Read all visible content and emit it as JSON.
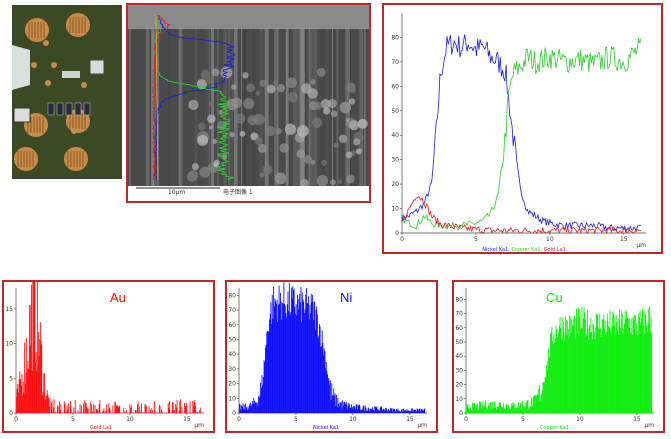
{
  "sem": {
    "scale_label": "10µm",
    "caption": "电子图像 1"
  },
  "photo": {
    "pad_color": "#c98b48",
    "board_color": "#3b4a24"
  },
  "chart_data": [
    {
      "id": "linescan",
      "type": "line",
      "x_unit": "µm",
      "xlim": [
        0,
        16.5
      ],
      "ylim": [
        0,
        90
      ],
      "x_ticks": [
        0,
        5,
        10,
        15
      ],
      "y_ticks": [
        0,
        10,
        20,
        30,
        40,
        50,
        60,
        70,
        80
      ],
      "series": [
        {
          "name": "Nickel Ka1",
          "color": "#1f1fd6",
          "x": [
            0,
            0.5,
            1,
            1.5,
            2,
            2.3,
            2.6,
            3,
            3.5,
            4,
            4.5,
            5,
            5.5,
            6,
            6.5,
            7,
            7.5,
            8,
            8.5,
            9,
            9.5,
            10,
            11,
            12,
            13,
            14,
            15,
            16
          ],
          "y": [
            6,
            7,
            9,
            12,
            20,
            40,
            65,
            76,
            78,
            76,
            78,
            75,
            76,
            72,
            70,
            66,
            40,
            18,
            9,
            7,
            5,
            4,
            3,
            3,
            3,
            2,
            2,
            2
          ]
        },
        {
          "name": "Copper Ka1",
          "color": "#2ecc2e",
          "x": [
            0,
            0.5,
            1,
            1.5,
            2,
            2.5,
            3,
            4,
            5,
            5.5,
            6,
            6.5,
            7,
            7.2,
            7.5,
            8,
            8.5,
            9,
            10,
            11,
            12,
            13,
            14,
            15,
            16
          ],
          "y": [
            6,
            4,
            3,
            7,
            4,
            3,
            3,
            3,
            4,
            5,
            8,
            15,
            40,
            55,
            65,
            68,
            72,
            70,
            72,
            70,
            71,
            69,
            72,
            70,
            75
          ]
        },
        {
          "name": "Gold La1",
          "color": "#dd2222",
          "x": [
            0,
            0.5,
            1,
            1.5,
            2,
            2.5,
            3,
            4,
            6,
            8,
            10,
            12,
            14,
            16
          ],
          "y": [
            4,
            10,
            16,
            13,
            7,
            4,
            3,
            2,
            1,
            1,
            1,
            1,
            1,
            1
          ]
        }
      ]
    },
    {
      "id": "au_map",
      "type": "bar",
      "label": "Au",
      "series_name": "Gold La1",
      "color": "#ff1010",
      "x_unit": "µm",
      "xlim": [
        0,
        16.5
      ],
      "ylim": [
        0,
        18
      ],
      "x_ticks": [
        0,
        5,
        10,
        15
      ],
      "y_ticks": [
        0,
        5,
        10,
        15
      ],
      "x": [
        0,
        0.5,
        1,
        1.3,
        1.6,
        2,
        2.3,
        2.6,
        3,
        4,
        6,
        8,
        10,
        12,
        14,
        16
      ],
      "y": [
        2,
        5,
        10,
        14,
        16,
        11,
        6,
        3,
        1,
        1,
        1,
        1,
        1,
        1,
        1,
        1
      ]
    },
    {
      "id": "ni_map",
      "type": "bar",
      "label": "Ni",
      "series_name": "Nickel Ka1",
      "color": "#1010ff",
      "x_unit": "µm",
      "xlim": [
        0,
        16.5
      ],
      "ylim": [
        0,
        85
      ],
      "x_ticks": [
        0,
        5,
        10,
        15
      ],
      "y_ticks": [
        0,
        10,
        20,
        30,
        40,
        50,
        60,
        70,
        80
      ],
      "x": [
        0,
        0.5,
        1,
        1.5,
        2,
        2.3,
        2.6,
        3,
        4,
        5,
        6,
        6.5,
        7,
        7.5,
        8,
        8.5,
        9,
        10,
        12,
        14,
        16
      ],
      "y": [
        4,
        4,
        5,
        8,
        18,
        45,
        65,
        75,
        76,
        74,
        72,
        70,
        60,
        40,
        15,
        8,
        6,
        4,
        3,
        2,
        2
      ]
    },
    {
      "id": "cu_map",
      "type": "bar",
      "label": "Cu",
      "series_name": "Copper Ka1",
      "color": "#10ee10",
      "x_unit": "µm",
      "xlim": [
        0,
        16.5
      ],
      "ylim": [
        0,
        88
      ],
      "x_ticks": [
        0,
        5,
        10,
        15
      ],
      "y_ticks": [
        0,
        10,
        20,
        30,
        40,
        50,
        60,
        70,
        80
      ],
      "x": [
        0,
        1,
        2,
        3,
        4,
        5,
        6,
        6.5,
        7,
        7.3,
        7.6,
        8,
        8.5,
        9,
        10,
        11,
        12,
        13,
        14,
        15,
        16
      ],
      "y": [
        4,
        5,
        6,
        6,
        5,
        6,
        8,
        15,
        30,
        45,
        55,
        60,
        62,
        60,
        64,
        62,
        63,
        61,
        64,
        62,
        66
      ]
    }
  ]
}
